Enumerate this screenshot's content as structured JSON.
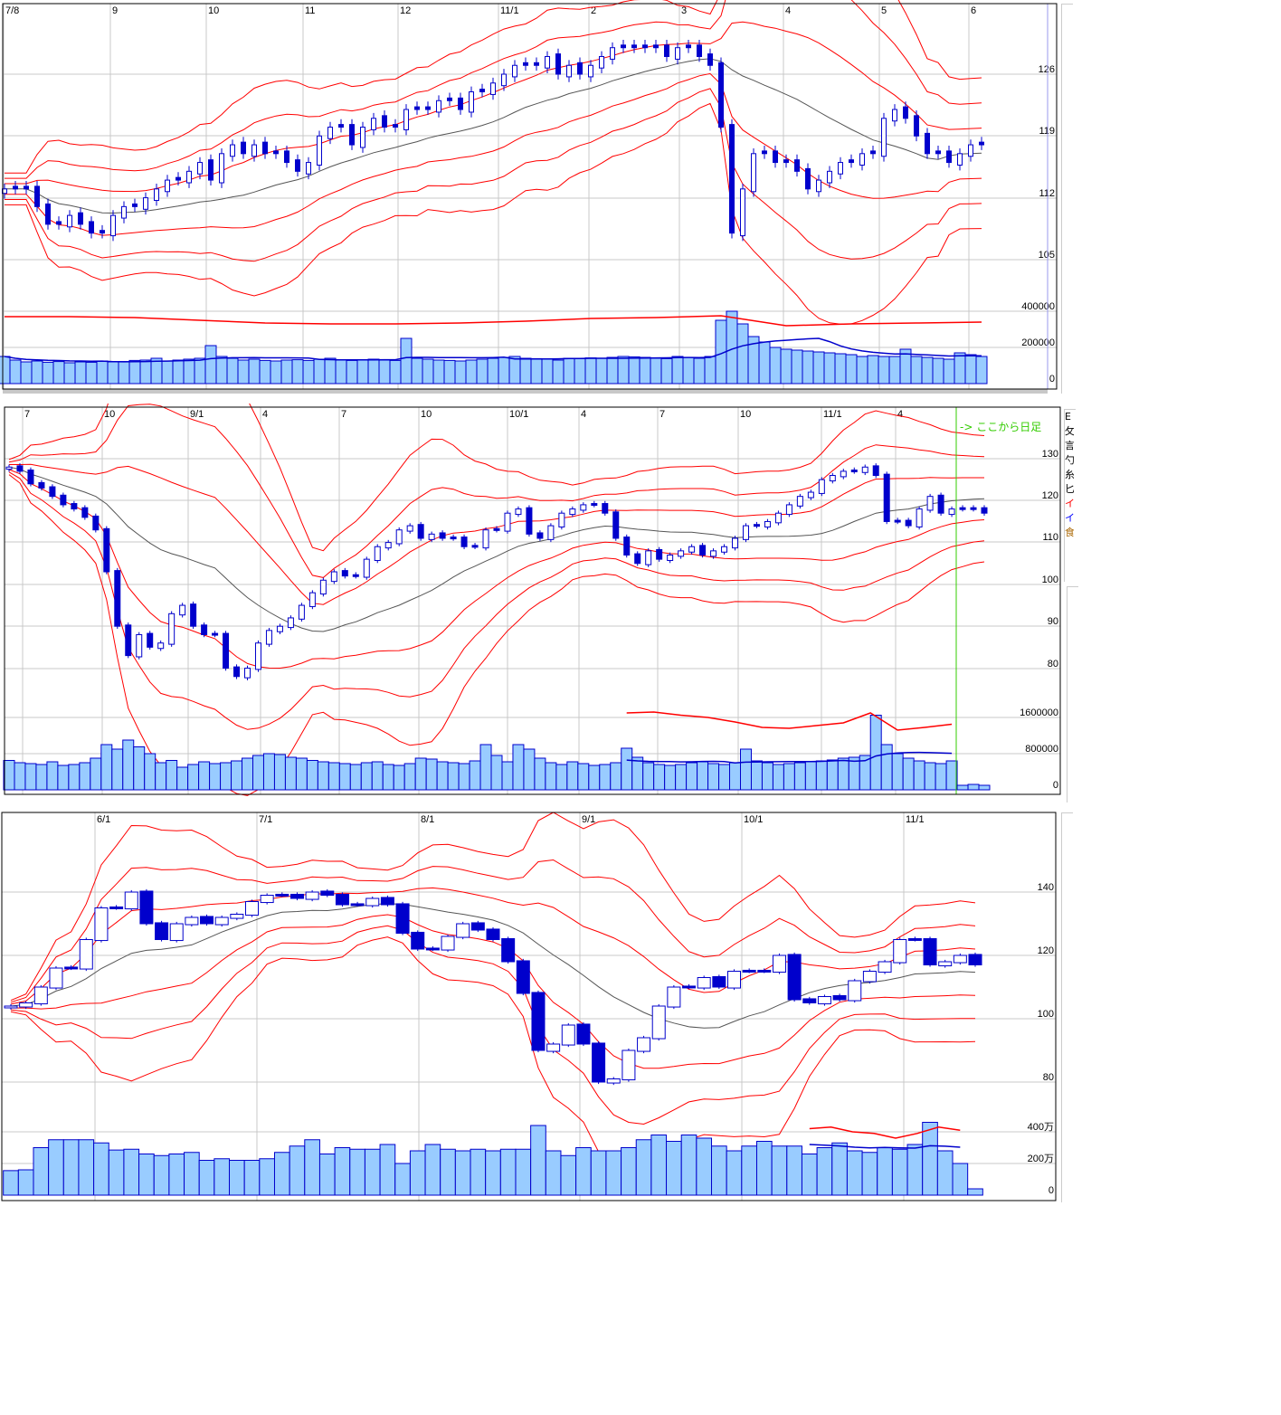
{
  "colors": {
    "band": "#ff0000",
    "ma": "#555555",
    "candle": "#0000cc",
    "volume_fill": "#99ccff",
    "volume_stroke": "#0000cc",
    "daily_marker": "#33cc00",
    "grid": "#c8c8c8"
  },
  "panels": [
    {
      "name": "top",
      "x_ticks": [
        "7/8",
        "9",
        "10",
        "11",
        "12",
        "11/1",
        "2",
        "3",
        "4",
        "5",
        "6"
      ],
      "price_ticks": [
        "126",
        "119",
        "112",
        "105"
      ],
      "volume_ticks": [
        "400000",
        "200000",
        "0"
      ],
      "closes": [
        113,
        113,
        113,
        111,
        109,
        109,
        110,
        109,
        108,
        108,
        110,
        111,
        111,
        112,
        113,
        114,
        114,
        115,
        116,
        114,
        117,
        118,
        117,
        118,
        117,
        117,
        116,
        115,
        116,
        119,
        120,
        120,
        118,
        120,
        121,
        120,
        120,
        122,
        122,
        122,
        123,
        123,
        122,
        124,
        124,
        125,
        126,
        127,
        127,
        127,
        128,
        126,
        127,
        126,
        127,
        128,
        129,
        129,
        129,
        129,
        129,
        128,
        129,
        129,
        128,
        127,
        120,
        108,
        113,
        117,
        117,
        116,
        116,
        115,
        113,
        114,
        115,
        116,
        116,
        117,
        117,
        121,
        122,
        121,
        119,
        117,
        117,
        116,
        117,
        118,
        118
      ],
      "volumes": [
        150000,
        130000,
        120000,
        125000,
        118000,
        122000,
        115000,
        120000,
        118000,
        125000,
        120000,
        122000,
        128000,
        130000,
        140000,
        125000,
        130000,
        135000,
        140000,
        210000,
        150000,
        140000,
        130000,
        135000,
        128000,
        125000,
        130000,
        132000,
        128000,
        135000,
        140000,
        130000,
        128000,
        132000,
        135000,
        130000,
        128000,
        250000,
        140000,
        135000,
        130000,
        128000,
        125000,
        130000,
        135000,
        140000,
        145000,
        150000,
        140000,
        138000,
        135000,
        130000,
        140000,
        138000,
        142000,
        140000,
        145000,
        150000,
        148000,
        145000,
        140000,
        138000,
        150000,
        145000,
        140000,
        150000,
        350000,
        400000,
        330000,
        260000,
        230000,
        200000,
        190000,
        185000,
        180000,
        175000,
        170000,
        165000,
        160000,
        150000,
        155000,
        150000,
        150000,
        190000,
        150000,
        145000,
        140000,
        135000,
        170000,
        160000,
        150000
      ],
      "volume_red_line": [
        370000,
        370000,
        365000,
        350000,
        335000,
        330000,
        330000,
        335000,
        345000,
        360000,
        365000,
        375000,
        320000,
        330000,
        335000,
        340000
      ]
    },
    {
      "name": "middle",
      "x_ticks": [
        "7",
        "10",
        "9/1",
        "4",
        "7",
        "10",
        "10/1",
        "4",
        "7",
        "10",
        "11/1",
        "4"
      ],
      "price_ticks": [
        "130",
        "120",
        "110",
        "100",
        "90",
        "80"
      ],
      "volume_ticks": [
        "1600000",
        "800000",
        "0"
      ],
      "daily_marker_label": "-> ここから日足",
      "closes": [
        128,
        127,
        124,
        123,
        121,
        119,
        118,
        116,
        113,
        103,
        90,
        83,
        88,
        85,
        86,
        93,
        95,
        90,
        88,
        88,
        80,
        78,
        80,
        86,
        89,
        90,
        92,
        95,
        98,
        101,
        103,
        102,
        102,
        106,
        109,
        110,
        113,
        114,
        111,
        112,
        111,
        111,
        109,
        109,
        113,
        113,
        117,
        118,
        112,
        111,
        114,
        117,
        118,
        119,
        119,
        117,
        111,
        107,
        105,
        108,
        106,
        107,
        108,
        109,
        107,
        108,
        109,
        111,
        114,
        114,
        115,
        117,
        119,
        121,
        122,
        125,
        126,
        127,
        127,
        128,
        126,
        115,
        115,
        114,
        118,
        121,
        117,
        118,
        118,
        118,
        117
      ],
      "volumes": [
        650000,
        600000,
        580000,
        560000,
        620000,
        540000,
        560000,
        600000,
        700000,
        1000000,
        900000,
        1100000,
        950000,
        800000,
        600000,
        650000,
        500000,
        560000,
        620000,
        580000,
        600000,
        640000,
        700000,
        760000,
        800000,
        780000,
        720000,
        700000,
        650000,
        620000,
        600000,
        580000,
        560000,
        600000,
        620000,
        560000,
        540000,
        580000,
        700000,
        680000,
        620000,
        600000,
        580000,
        640000,
        1000000,
        760000,
        620000,
        1000000,
        900000,
        700000,
        600000,
        560000,
        620000,
        580000,
        540000,
        560000,
        600000,
        920000,
        720000,
        600000,
        560000,
        540000,
        560000,
        600000,
        620000,
        580000,
        560000,
        600000,
        900000,
        640000,
        600000,
        560000,
        580000,
        600000,
        620000,
        640000,
        660000,
        700000,
        720000,
        760000,
        1650000,
        1000000,
        800000,
        700000,
        640000,
        600000,
        580000,
        640000,
        100000,
        120000,
        100000
      ],
      "volume_red_line": [
        1700000,
        1720000,
        1650000,
        1600000,
        1500000,
        1380000,
        1360000,
        1420000,
        1480000,
        1700000,
        1320000,
        1380000,
        1450000
      ],
      "sidebar": [
        "E",
        "攵",
        "言",
        "勺",
        "糸",
        "匕",
        "イ",
        "イ",
        "食"
      ]
    },
    {
      "name": "bottom",
      "x_ticks": [
        "6/1",
        "7/1",
        "8/1",
        "9/1",
        "10/1",
        "11/1"
      ],
      "price_ticks": [
        "140",
        "120",
        "100",
        "80"
      ],
      "volume_ticks": [
        "400万",
        "200万",
        "0"
      ],
      "closes": [
        104,
        105,
        110,
        116,
        116,
        125,
        135,
        135,
        140,
        130,
        125,
        130,
        132,
        130,
        132,
        133,
        137,
        139,
        139,
        138,
        140,
        139,
        136,
        136,
        138,
        136,
        127,
        122,
        122,
        126,
        130,
        128,
        125,
        118,
        108,
        90,
        92,
        98,
        92,
        80,
        81,
        90,
        94,
        104,
        110,
        110,
        113,
        110,
        115,
        115,
        115,
        120,
        106,
        105,
        107,
        106,
        112,
        115,
        118,
        125,
        125,
        117,
        118,
        120,
        117
      ],
      "volumes": [
        1550000,
        1600000,
        3000000,
        3500000,
        3500000,
        3500000,
        3300000,
        2850000,
        2900000,
        2600000,
        2500000,
        2600000,
        2700000,
        2200000,
        2300000,
        2200000,
        2200000,
        2300000,
        2700000,
        3100000,
        3500000,
        2600000,
        3000000,
        2900000,
        2900000,
        3200000,
        2000000,
        2800000,
        3200000,
        2900000,
        2800000,
        2900000,
        2800000,
        2900000,
        2900000,
        4400000,
        2800000,
        2500000,
        3000000,
        2800000,
        2800000,
        3000000,
        3500000,
        3800000,
        3400000,
        3800000,
        3600000,
        3100000,
        2800000,
        3100000,
        3400000,
        3100000,
        3100000,
        2600000,
        3000000,
        3300000,
        2800000,
        2700000,
        3000000,
        2900000,
        3200000,
        4600000,
        2800000,
        2000000,
        400000
      ],
      "volume_red_line": [
        4200000,
        4300000,
        4000000,
        3900000,
        3600000,
        3900000,
        4300000,
        4100000
      ]
    }
  ]
}
